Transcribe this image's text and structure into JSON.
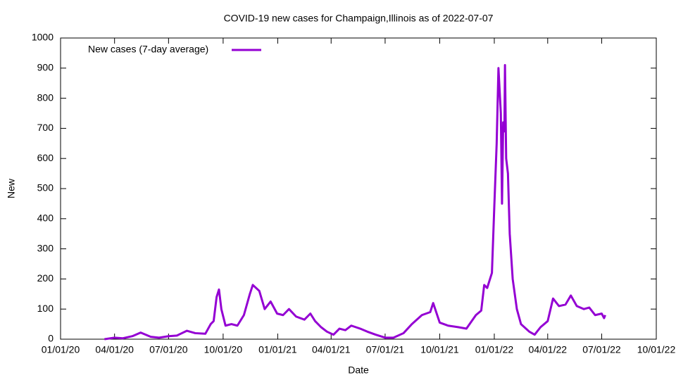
{
  "chart_data": {
    "type": "line",
    "title": "COVID-19 new cases for Champaign,Illinois as of 2022-07-07",
    "x_label": "Date",
    "y_label": "New",
    "x": [
      "2020-03-15",
      "2020-03-22",
      "2020-04-01",
      "2020-04-15",
      "2020-05-01",
      "2020-05-15",
      "2020-06-01",
      "2020-06-15",
      "2020-07-01",
      "2020-07-15",
      "2020-08-01",
      "2020-08-15",
      "2020-09-01",
      "2020-09-10",
      "2020-09-15",
      "2020-09-20",
      "2020-09-24",
      "2020-09-28",
      "2020-10-05",
      "2020-10-15",
      "2020-10-25",
      "2020-11-05",
      "2020-11-15",
      "2020-11-20",
      "2020-12-01",
      "2020-12-10",
      "2020-12-20",
      "2020-12-31",
      "2021-01-10",
      "2021-01-20",
      "2021-02-01",
      "2021-02-15",
      "2021-02-25",
      "2021-03-05",
      "2021-03-15",
      "2021-03-25",
      "2021-04-05",
      "2021-04-15",
      "2021-04-25",
      "2021-05-05",
      "2021-05-20",
      "2021-06-01",
      "2021-06-15",
      "2021-07-01",
      "2021-07-15",
      "2021-08-01",
      "2021-08-15",
      "2021-09-01",
      "2021-09-15",
      "2021-09-20",
      "2021-10-01",
      "2021-10-15",
      "2021-11-01",
      "2021-11-15",
      "2021-12-01",
      "2021-12-10",
      "2021-12-15",
      "2021-12-20",
      "2021-12-28",
      "2022-01-01",
      "2022-01-05",
      "2022-01-08",
      "2022-01-12",
      "2022-01-14",
      "2022-01-16",
      "2022-01-18",
      "2022-01-19",
      "2022-01-21",
      "2022-01-24",
      "2022-01-27",
      "2022-02-01",
      "2022-02-08",
      "2022-02-15",
      "2022-03-01",
      "2022-03-10",
      "2022-03-20",
      "2022-04-01",
      "2022-04-10",
      "2022-04-20",
      "2022-05-01",
      "2022-05-10",
      "2022-05-20",
      "2022-06-01",
      "2022-06-10",
      "2022-06-20",
      "2022-07-01",
      "2022-07-05",
      "2022-07-07"
    ],
    "series": [
      {
        "name": "New cases (7-day average)",
        "color": "#9400d3",
        "values": [
          0,
          2,
          5,
          3,
          10,
          22,
          8,
          5,
          10,
          12,
          28,
          20,
          18,
          50,
          60,
          140,
          165,
          100,
          45,
          50,
          45,
          80,
          150,
          180,
          160,
          100,
          125,
          85,
          80,
          100,
          75,
          65,
          85,
          60,
          40,
          25,
          15,
          35,
          30,
          45,
          35,
          25,
          15,
          5,
          5,
          20,
          50,
          80,
          90,
          120,
          55,
          45,
          40,
          35,
          80,
          95,
          180,
          170,
          220,
          440,
          650,
          900,
          750,
          450,
          720,
          690,
          910,
          600,
          550,
          350,
          200,
          100,
          50,
          25,
          15,
          40,
          60,
          135,
          110,
          115,
          145,
          110,
          100,
          105,
          80,
          85,
          70,
          80
        ]
      }
    ],
    "xlim": [
      "2020-01-01",
      "2022-10-01"
    ],
    "xticks": [
      {
        "value": "2020-01-01",
        "label": "01/01/20"
      },
      {
        "value": "2020-04-01",
        "label": "04/01/20"
      },
      {
        "value": "2020-07-01",
        "label": "07/01/20"
      },
      {
        "value": "2020-10-01",
        "label": "10/01/20"
      },
      {
        "value": "2021-01-01",
        "label": "01/01/21"
      },
      {
        "value": "2021-04-01",
        "label": "04/01/21"
      },
      {
        "value": "2021-07-01",
        "label": "07/01/21"
      },
      {
        "value": "2021-10-01",
        "label": "10/01/21"
      },
      {
        "value": "2022-01-01",
        "label": "01/01/22"
      },
      {
        "value": "2022-04-01",
        "label": "04/01/22"
      },
      {
        "value": "2022-07-01",
        "label": "07/01/22"
      },
      {
        "value": "2022-10-01",
        "label": "10/01/22"
      }
    ],
    "ylim": [
      0,
      1000
    ],
    "yticks": [
      0,
      100,
      200,
      300,
      400,
      500,
      600,
      700,
      800,
      900,
      1000
    ],
    "legend": "top-left"
  }
}
